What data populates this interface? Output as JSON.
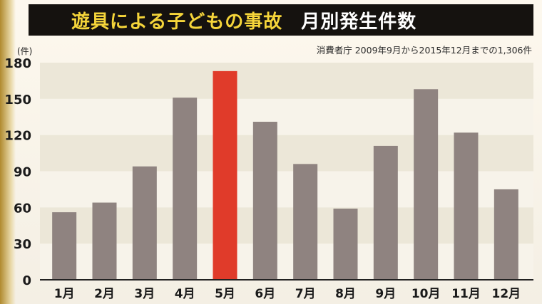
{
  "header": {
    "title": "遊具による子どもの事故",
    "subtitle": "月別発生件数"
  },
  "source_note": "消費者庁 2009年9月から2015年12月までの1,306件",
  "colors": {
    "bar": "#8f8380",
    "highlight": "#e03b2a",
    "band_dark": "#ece7d8",
    "band_light": "#f7f3ea",
    "title_bg": "#15120f",
    "title_text": "#f5d53a"
  },
  "chart_data": {
    "type": "bar",
    "ylabel": "(件)",
    "ylim": [
      0,
      180
    ],
    "yticks": [
      0,
      30,
      60,
      90,
      120,
      150,
      180
    ],
    "categories": [
      "1月",
      "2月",
      "3月",
      "4月",
      "5月",
      "6月",
      "7月",
      "8月",
      "9月",
      "10月",
      "11月",
      "12月"
    ],
    "values": [
      56,
      64,
      94,
      151,
      173,
      131,
      96,
      59,
      111,
      158,
      122,
      75
    ],
    "highlight_index": 4,
    "grid": "horizontal bands"
  }
}
